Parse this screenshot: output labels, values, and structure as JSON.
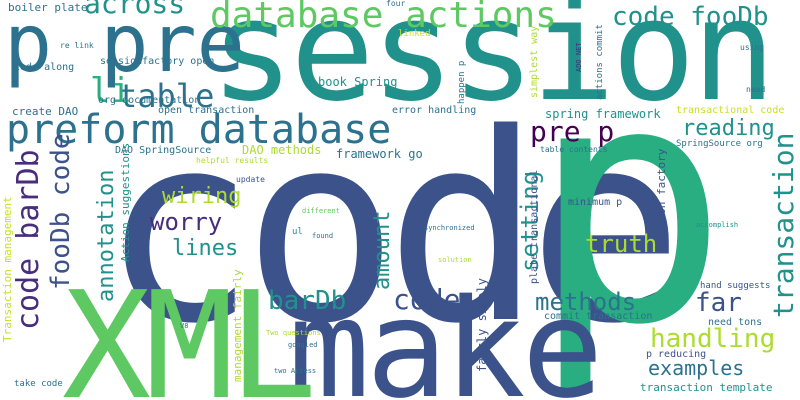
{
  "words": {
    "code": "code",
    "p": "p",
    "session": "session",
    "make": "make",
    "xml": "XML",
    "pre": "p pre",
    "preform_database": "preform database",
    "database_actions": "database actions",
    "code_foodb": "code fooDb",
    "table": "table",
    "li": "li",
    "across": "across",
    "transaction": "transaction",
    "code_bardb": "code barDb",
    "foodb_code": "fooDb code",
    "annotation": "annotation",
    "bardb": "barDb",
    "code_small": "code",
    "wiring": "wiring",
    "worry": "worry",
    "lines": "lines",
    "amount": "amount",
    "setting": "setting",
    "truth": "truth",
    "methods": "methods",
    "far": "far",
    "handling": "handling",
    "examples": "examples",
    "pre_p": "pre p",
    "reading": "reading",
    "transaction_template": "transaction template",
    "p_reducing": "p reducing",
    "book_spring": "book Spring",
    "spring_framework": "spring framework",
    "framework_go": "framework go",
    "dao_methods": "DAO methods",
    "dao_springsource": "DAO SpringSource",
    "create_dao": "create DAO",
    "org_documentation": "org documentation",
    "open_transaction": "open transaction",
    "sessionfactory_open": "sessionfactory open",
    "code_along": "code along",
    "boiler_plate": "boiler plate",
    "re_link": "re link",
    "transaction_management": "Transaction management",
    "action_suggestions": "Action suggestions",
    "management_fairly": "management fairly",
    "fairly_simply": "fairly simply",
    "commit_transaction": "commit transaction",
    "need_tons": "need tons",
    "hand_suggests": "hand suggests",
    "session_factory": "session factory",
    "plate_transactional": "plate transactional",
    "transactional_code": "transactional code",
    "springsource_org": "SpringSource org",
    "table_contents": "table contents",
    "error_handling": "error handling",
    "happen_p": "happen p",
    "simplest_way": "simplest way",
    "actions_commit": "actions commit",
    "ado_net": "ADO NET",
    "linked": "linked",
    "four": "four",
    "using": "using",
    "need": "need",
    "helpful_results": "helpful results",
    "update": "update",
    "different": "different",
    "found": "found",
    "ul": "ul",
    "synchronized": "synchronized",
    "solution": "solution",
    "accomplish": "accomplish",
    "minimum_p": "minimum p",
    "two_questions": "Two questions",
    "googled": "googled",
    "two_access": "two Access",
    "v8": "V8",
    "take_code": "take code"
  },
  "colors": {
    "navy": "#3b528b",
    "deep": "#472d7b",
    "purple": "#440154",
    "teal": "#21918c",
    "teal2": "#2c728e",
    "green": "#28ae80",
    "lime": "#5ec962",
    "yellow": "#addc30",
    "gold": "#c8e020"
  }
}
